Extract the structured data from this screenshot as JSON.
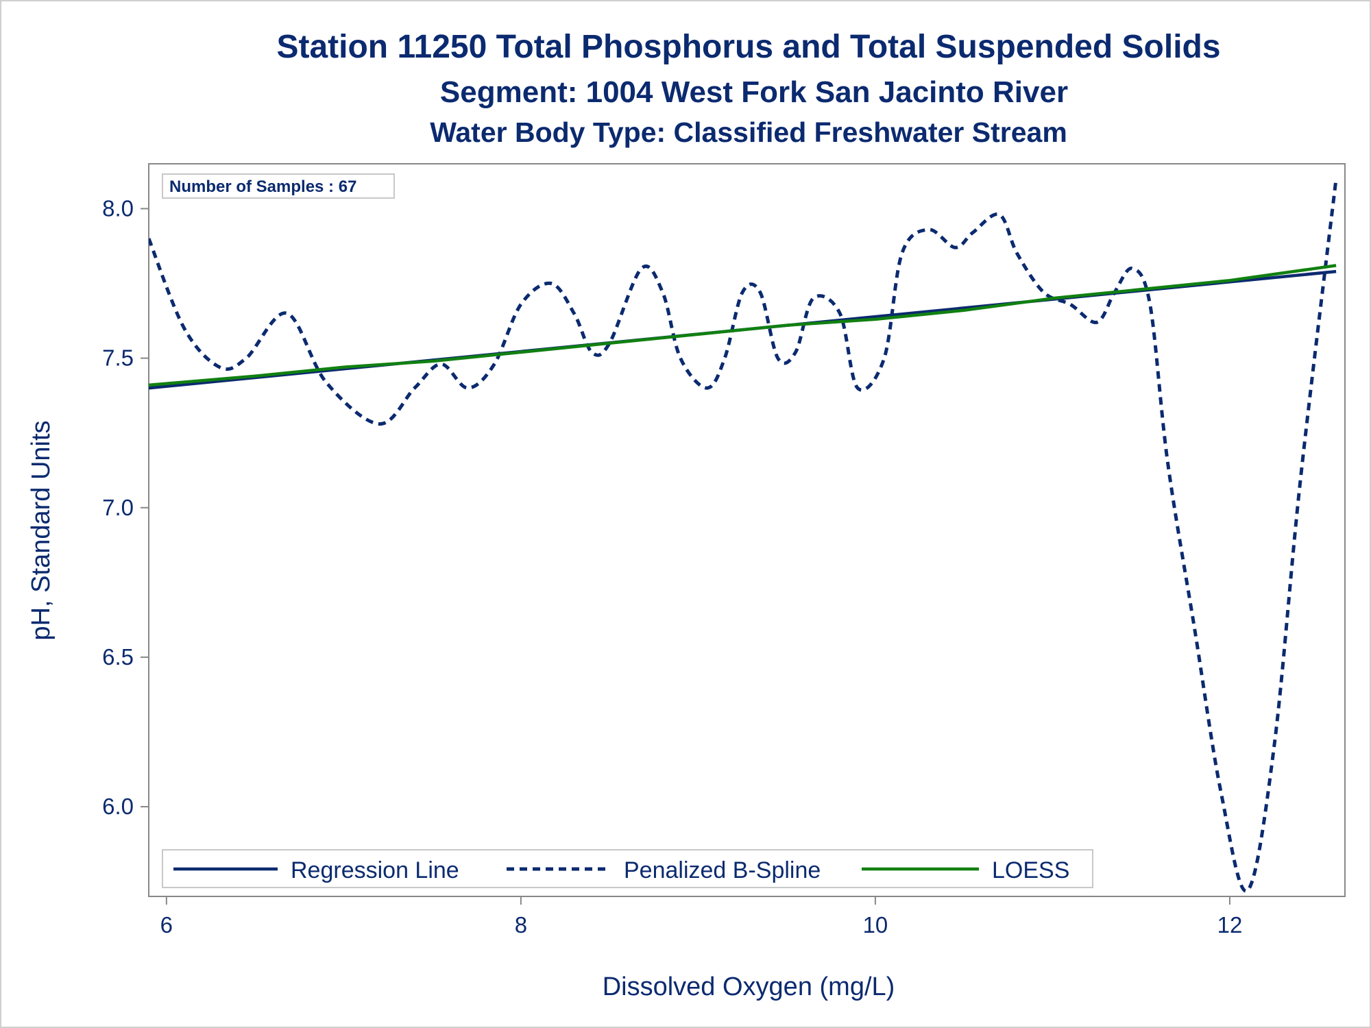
{
  "chart_data": {
    "type": "line",
    "title": "Station 11250  Total Phosphorus and Total Suspended Solids",
    "subtitle": "Segment: 1004  West Fork San Jacinto River",
    "subtitle2": "Water Body Type: Classified Freshwater Stream",
    "xlabel": "Dissolved Oxygen (mg/L)",
    "ylabel": "pH, Standard Units",
    "xlim": [
      5.9,
      12.65
    ],
    "ylim": [
      5.7,
      8.15
    ],
    "xticks": [
      6,
      8,
      10,
      12
    ],
    "yticks": [
      6.0,
      6.5,
      7.0,
      7.5,
      8.0
    ],
    "ytick_labels": [
      "6.0",
      "6.5",
      "7.0",
      "7.5",
      "8.0"
    ],
    "grid": false,
    "legend_position": "bottom-left inside",
    "annotation": "Number of Samples : 67",
    "series": [
      {
        "name": "Regression Line",
        "style": "solid",
        "color": "#0b2a6f",
        "x": [
          5.9,
          12.6
        ],
        "y": [
          7.4,
          7.79
        ]
      },
      {
        "name": "Penalized B-Spline",
        "style": "dashed",
        "color": "#0b2a6f",
        "x": [
          5.9,
          6.1,
          6.3,
          6.45,
          6.68,
          6.9,
          7.2,
          7.4,
          7.55,
          7.7,
          7.85,
          8.0,
          8.17,
          8.3,
          8.4,
          8.5,
          8.68,
          8.8,
          8.9,
          9.05,
          9.15,
          9.25,
          9.35,
          9.45,
          9.55,
          9.65,
          9.8,
          9.9,
          10.05,
          10.15,
          10.3,
          10.45,
          10.55,
          10.7,
          10.8,
          10.95,
          11.1,
          11.25,
          11.35,
          11.45,
          11.55,
          11.65,
          11.8,
          11.95,
          12.1,
          12.25,
          12.4,
          12.6
        ],
        "y": [
          7.9,
          7.6,
          7.47,
          7.5,
          7.65,
          7.42,
          7.28,
          7.4,
          7.48,
          7.4,
          7.48,
          7.68,
          7.75,
          7.65,
          7.52,
          7.55,
          7.8,
          7.72,
          7.5,
          7.4,
          7.5,
          7.72,
          7.72,
          7.5,
          7.52,
          7.7,
          7.65,
          7.4,
          7.5,
          7.85,
          7.93,
          7.87,
          7.92,
          7.98,
          7.85,
          7.72,
          7.68,
          7.62,
          7.72,
          7.8,
          7.68,
          7.15,
          6.6,
          6.05,
          5.72,
          6.2,
          7.1,
          8.1
        ]
      },
      {
        "name": "LOESS",
        "style": "solid",
        "color": "#118011",
        "x": [
          5.9,
          6.5,
          7.0,
          7.5,
          8.0,
          8.5,
          9.0,
          9.5,
          10.0,
          10.5,
          11.0,
          11.5,
          12.0,
          12.6
        ],
        "y": [
          7.41,
          7.44,
          7.47,
          7.49,
          7.52,
          7.55,
          7.58,
          7.61,
          7.63,
          7.66,
          7.7,
          7.73,
          7.76,
          7.81
        ]
      }
    ]
  }
}
